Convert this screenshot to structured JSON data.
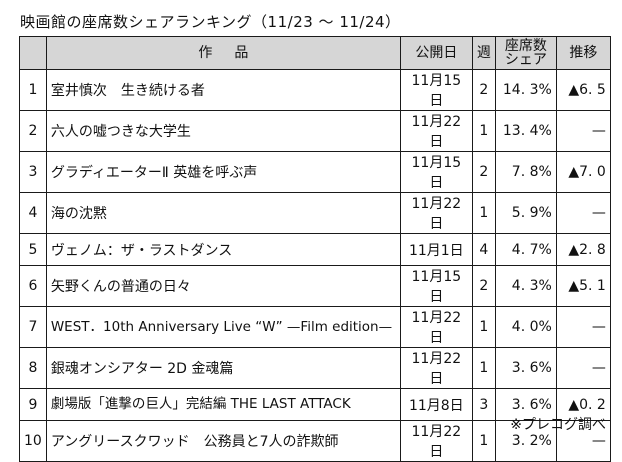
{
  "title": "映画館の座席数シェアランキング（11/23 ～ 11/24）",
  "headers": {
    "rank": "",
    "title": "作品",
    "release": "公開日",
    "week": "週",
    "share_line1": "座席数",
    "share_line2": "シェア",
    "trend": "推移"
  },
  "rows": [
    {
      "rank": "1",
      "title": "室井慎次　生き続ける者",
      "release": "11月15日",
      "week": "2",
      "share": "14. 3%",
      "trend": "▲6. 5"
    },
    {
      "rank": "2",
      "title": "六人の嘘つきな大学生",
      "release": "11月22日",
      "week": "1",
      "share": "13. 4%",
      "trend": "—"
    },
    {
      "rank": "3",
      "title": "グラディエーターⅡ 英雄を呼ぶ声",
      "release": "11月15日",
      "week": "2",
      "share": "7. 8%",
      "trend": "▲7. 0"
    },
    {
      "rank": "4",
      "title": "海の沈黙",
      "release": "11月22日",
      "week": "1",
      "share": "5. 9%",
      "trend": "—"
    },
    {
      "rank": "5",
      "title": "ヴェノム：ザ・ラストダンス",
      "release": "11月1日",
      "week": "4",
      "share": "4. 7%",
      "trend": "▲2. 8"
    },
    {
      "rank": "6",
      "title": "矢野くんの普通の日々",
      "release": "11月15日",
      "week": "2",
      "share": "4. 3%",
      "trend": "▲5. 1"
    },
    {
      "rank": "7",
      "title": "WEST．10th Anniversary Live “W” —Film edition—",
      "release": "11月22日",
      "week": "1",
      "share": "4. 0%",
      "trend": "—"
    },
    {
      "rank": "8",
      "title": "銀魂オンシアター 2D 金魂篇",
      "release": "11月22日",
      "week": "1",
      "share": "3. 6%",
      "trend": "—"
    },
    {
      "rank": "9",
      "title": "劇場版「進撃の巨人」完結編 THE LAST ATTACK",
      "release": "11月8日",
      "week": "3",
      "share": "3. 6%",
      "trend": "▲0. 2"
    },
    {
      "rank": "10",
      "title": "アングリースクワッド　公務員と7人の詐欺師",
      "release": "11月22日",
      "week": "1",
      "share": "3. 2%",
      "trend": "—"
    }
  ],
  "footnote": "※プレコグ調べ"
}
